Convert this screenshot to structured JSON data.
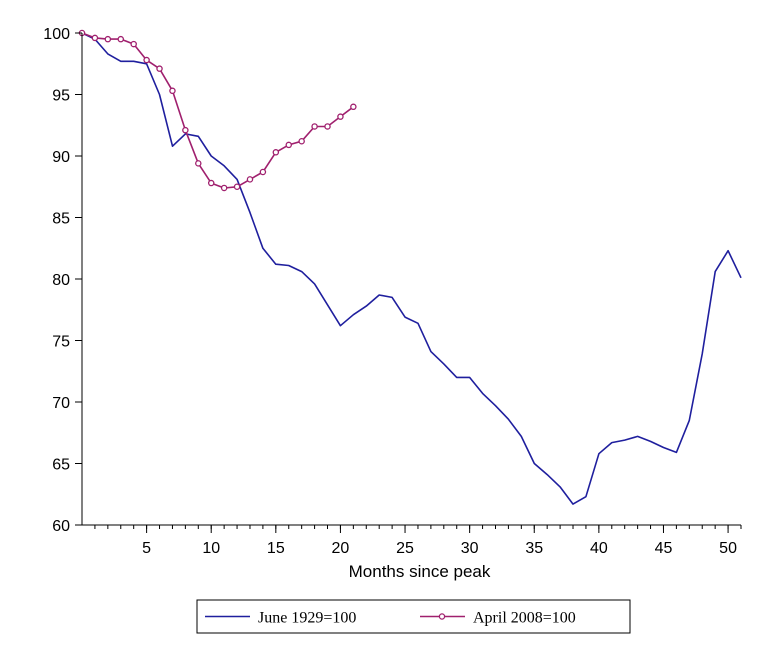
{
  "chart_data": {
    "type": "line",
    "title": "",
    "xlabel": "Months since peak",
    "ylabel": "",
    "xlim": [
      0,
      51
    ],
    "ylim": [
      60,
      100
    ],
    "xticks": [
      5,
      10,
      15,
      20,
      25,
      30,
      35,
      40,
      45,
      50
    ],
    "yticks": [
      60,
      65,
      70,
      75,
      80,
      85,
      90,
      95,
      100
    ],
    "grid": false,
    "legend_position": "bottom",
    "series": [
      {
        "name": "June 1929=100",
        "color": "#1f1f9e",
        "marker": "none",
        "points": [
          [
            0,
            100
          ],
          [
            1,
            99.5
          ],
          [
            2,
            98.3
          ],
          [
            3,
            97.7
          ],
          [
            4,
            97.7
          ],
          [
            5,
            97.5
          ],
          [
            6,
            95
          ],
          [
            7,
            90.8
          ],
          [
            8,
            91.8
          ],
          [
            9,
            91.6
          ],
          [
            10,
            90
          ],
          [
            11,
            89.2
          ],
          [
            12,
            88.1
          ],
          [
            13,
            85.4
          ],
          [
            14,
            82.5
          ],
          [
            15,
            81.2
          ],
          [
            16,
            81.1
          ],
          [
            17,
            80.6
          ],
          [
            18,
            79.6
          ],
          [
            19,
            77.9
          ],
          [
            20,
            76.2
          ],
          [
            21,
            77.1
          ],
          [
            22,
            77.8
          ],
          [
            23,
            78.7
          ],
          [
            24,
            78.5
          ],
          [
            25,
            76.9
          ],
          [
            26,
            76.4
          ],
          [
            27,
            74.1
          ],
          [
            28,
            73.1
          ],
          [
            29,
            72
          ],
          [
            30,
            72
          ],
          [
            31,
            70.7
          ],
          [
            32,
            69.7
          ],
          [
            33,
            68.6
          ],
          [
            34,
            67.2
          ],
          [
            35,
            65
          ],
          [
            36,
            64.1
          ],
          [
            37,
            63.1
          ],
          [
            38,
            61.7
          ],
          [
            39,
            62.3
          ],
          [
            40,
            65.8
          ],
          [
            41,
            66.7
          ],
          [
            42,
            66.9
          ],
          [
            43,
            67.2
          ],
          [
            44,
            66.8
          ],
          [
            45,
            66.3
          ],
          [
            46,
            65.9
          ],
          [
            47,
            68.5
          ],
          [
            48,
            73.9
          ],
          [
            49,
            80.6
          ],
          [
            50,
            82.3
          ],
          [
            51,
            80.1
          ]
        ]
      },
      {
        "name": "April 2008=100",
        "color": "#a0206e",
        "marker": "circle",
        "points": [
          [
            0,
            100
          ],
          [
            1,
            99.6
          ],
          [
            2,
            99.5
          ],
          [
            3,
            99.5
          ],
          [
            4,
            99.1
          ],
          [
            5,
            97.8
          ],
          [
            6,
            97.1
          ],
          [
            7,
            95.3
          ],
          [
            8,
            92.1
          ],
          [
            9,
            89.4
          ],
          [
            10,
            87.8
          ],
          [
            11,
            87.4
          ],
          [
            12,
            87.5
          ],
          [
            13,
            88.1
          ],
          [
            14,
            88.7
          ],
          [
            15,
            90.3
          ],
          [
            16,
            90.9
          ],
          [
            17,
            91.2
          ],
          [
            18,
            92.4
          ],
          [
            19,
            92.4
          ],
          [
            20,
            93.2
          ],
          [
            21,
            94
          ]
        ]
      }
    ]
  }
}
